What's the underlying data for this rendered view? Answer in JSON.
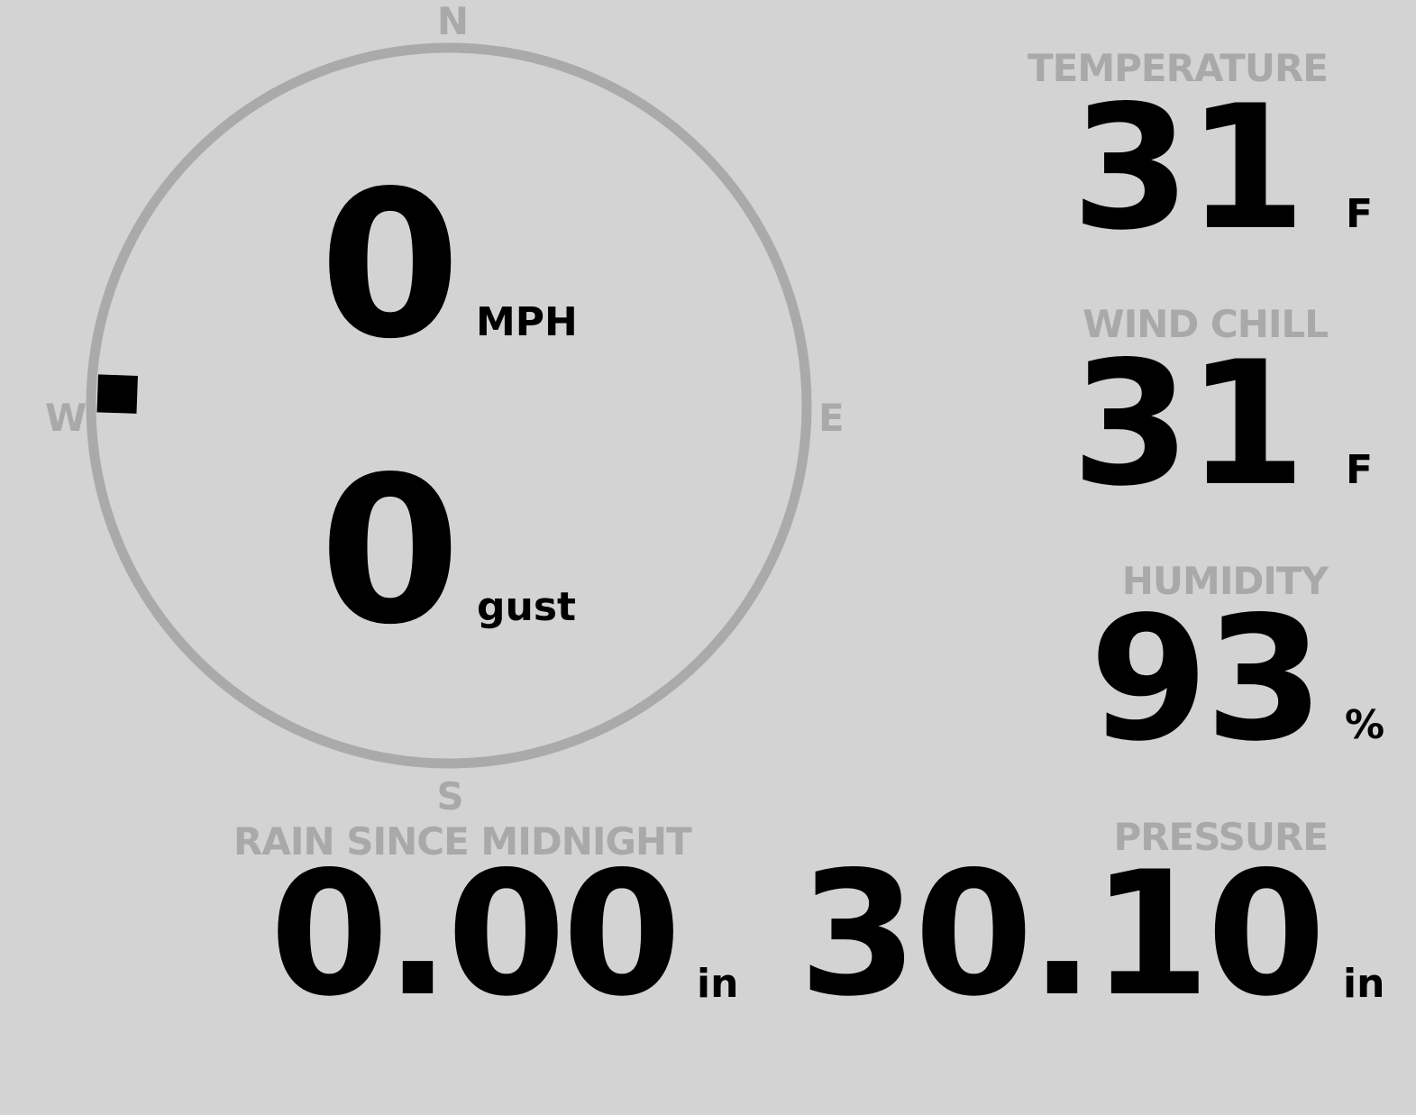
{
  "colors": {
    "background": "#d3d3d3",
    "label": "#a9a9a9",
    "value": "#000000",
    "compass_ring": "#aaaaaa",
    "wind_marker": "#000000"
  },
  "compass": {
    "north": "N",
    "east": "E",
    "south": "S",
    "west": "W",
    "wind_direction_deg": 272
  },
  "wind": {
    "speed": "0",
    "speed_unit": "MPH",
    "gust": "0",
    "gust_unit": "gust"
  },
  "temperature": {
    "label": "TEMPERATURE",
    "value": "31",
    "unit": "F"
  },
  "wind_chill": {
    "label": "WIND CHILL",
    "value": "31",
    "unit": "F"
  },
  "humidity": {
    "label": "HUMIDITY",
    "value": "93",
    "unit": "%"
  },
  "rain": {
    "label": "RAIN SINCE MIDNIGHT",
    "value": "0.00",
    "unit": "in"
  },
  "pressure": {
    "label": "PRESSURE",
    "value": "30.10",
    "unit": "in"
  }
}
